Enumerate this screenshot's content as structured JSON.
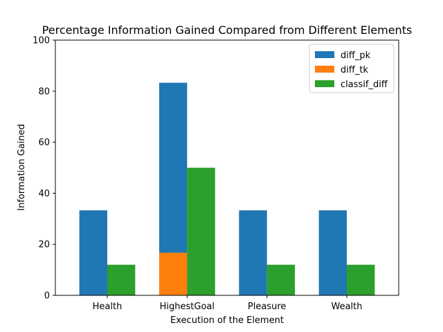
{
  "chart_data": {
    "type": "bar",
    "title": "Percentage Information Gained Compared from Different Elements",
    "xlabel": "Execution of the Element",
    "ylabel": "Information Gained",
    "categories": [
      "Health",
      "HighestGoal",
      "Pleasure",
      "Wealth"
    ],
    "ylim": [
      0,
      100
    ],
    "yticks": [
      0,
      20,
      40,
      60,
      80,
      100
    ],
    "grid": false,
    "legend_position": "top-right",
    "series": [
      {
        "name": "diff_pk",
        "values": [
          33.3,
          83.3,
          33.3,
          33.3
        ],
        "color": "#1f77b4",
        "slot": 0
      },
      {
        "name": "diff_tk",
        "values": [
          0,
          16.7,
          0,
          0
        ],
        "color": "#ff7f0e",
        "slot": 0
      },
      {
        "name": "classif_diff",
        "values": [
          12,
          50,
          12,
          12
        ],
        "color": "#2ca02c",
        "slot": 1
      }
    ]
  }
}
